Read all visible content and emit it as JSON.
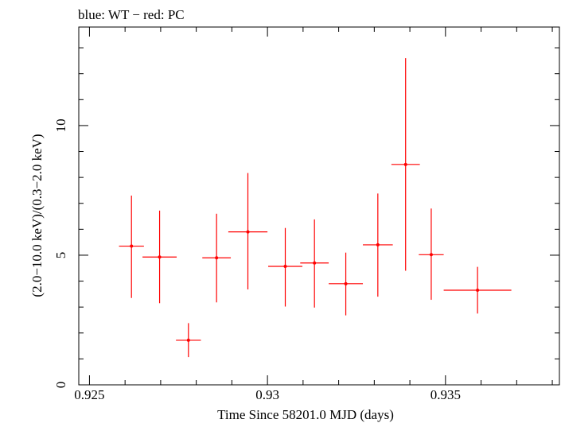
{
  "chart_data": {
    "type": "scatter",
    "title": "blue: WT − red: PC",
    "xlabel": "Time Since 58201.0 MJD (days)",
    "ylabel": "(2.0−10.0 keV)/(0.3−2.0 keV)",
    "xlim": [
      0.9247,
      0.9382
    ],
    "ylim": [
      0,
      13.8
    ],
    "x_ticks": [
      0.925,
      0.93,
      0.935
    ],
    "x_tick_labels": [
      "0.925",
      "0.93",
      "0.935"
    ],
    "y_ticks": [
      0,
      5,
      10
    ],
    "y_tick_labels": [
      "0",
      "5",
      "10"
    ],
    "grid": false,
    "series": [
      {
        "name": "PC",
        "color": "#ff0000",
        "points": [
          {
            "x": 0.92618,
            "xerr": 0.00035,
            "y": 5.35,
            "ylo": 3.35,
            "yhi": 7.3
          },
          {
            "x": 0.92697,
            "xerr": 0.00048,
            "y": 4.93,
            "ylo": 3.15,
            "yhi": 6.72
          },
          {
            "x": 0.92778,
            "xerr": 0.00035,
            "y": 1.72,
            "ylo": 1.07,
            "yhi": 2.38
          },
          {
            "x": 0.92857,
            "xerr": 0.0004,
            "y": 4.9,
            "ylo": 3.18,
            "yhi": 6.6
          },
          {
            "x": 0.92945,
            "xerr": 0.00055,
            "y": 5.9,
            "ylo": 3.68,
            "yhi": 8.17
          },
          {
            "x": 0.9305,
            "xerr": 0.00048,
            "y": 4.57,
            "ylo": 3.02,
            "yhi": 6.05
          },
          {
            "x": 0.93132,
            "xerr": 0.0004,
            "y": 4.7,
            "ylo": 2.98,
            "yhi": 6.38
          },
          {
            "x": 0.9322,
            "xerr": 0.00048,
            "y": 3.9,
            "ylo": 2.68,
            "yhi": 5.1
          },
          {
            "x": 0.9331,
            "xerr": 0.00042,
            "y": 5.4,
            "ylo": 3.4,
            "yhi": 7.38
          },
          {
            "x": 0.93388,
            "xerr": 0.0004,
            "y": 8.5,
            "ylo": 4.4,
            "yhi": 12.6
          },
          {
            "x": 0.9346,
            "xerr": 0.00035,
            "y": 5.02,
            "ylo": 3.28,
            "yhi": 6.8
          },
          {
            "x": 0.9359,
            "xerr": 0.00095,
            "y": 3.65,
            "ylo": 2.75,
            "yhi": 4.55
          }
        ]
      }
    ]
  }
}
